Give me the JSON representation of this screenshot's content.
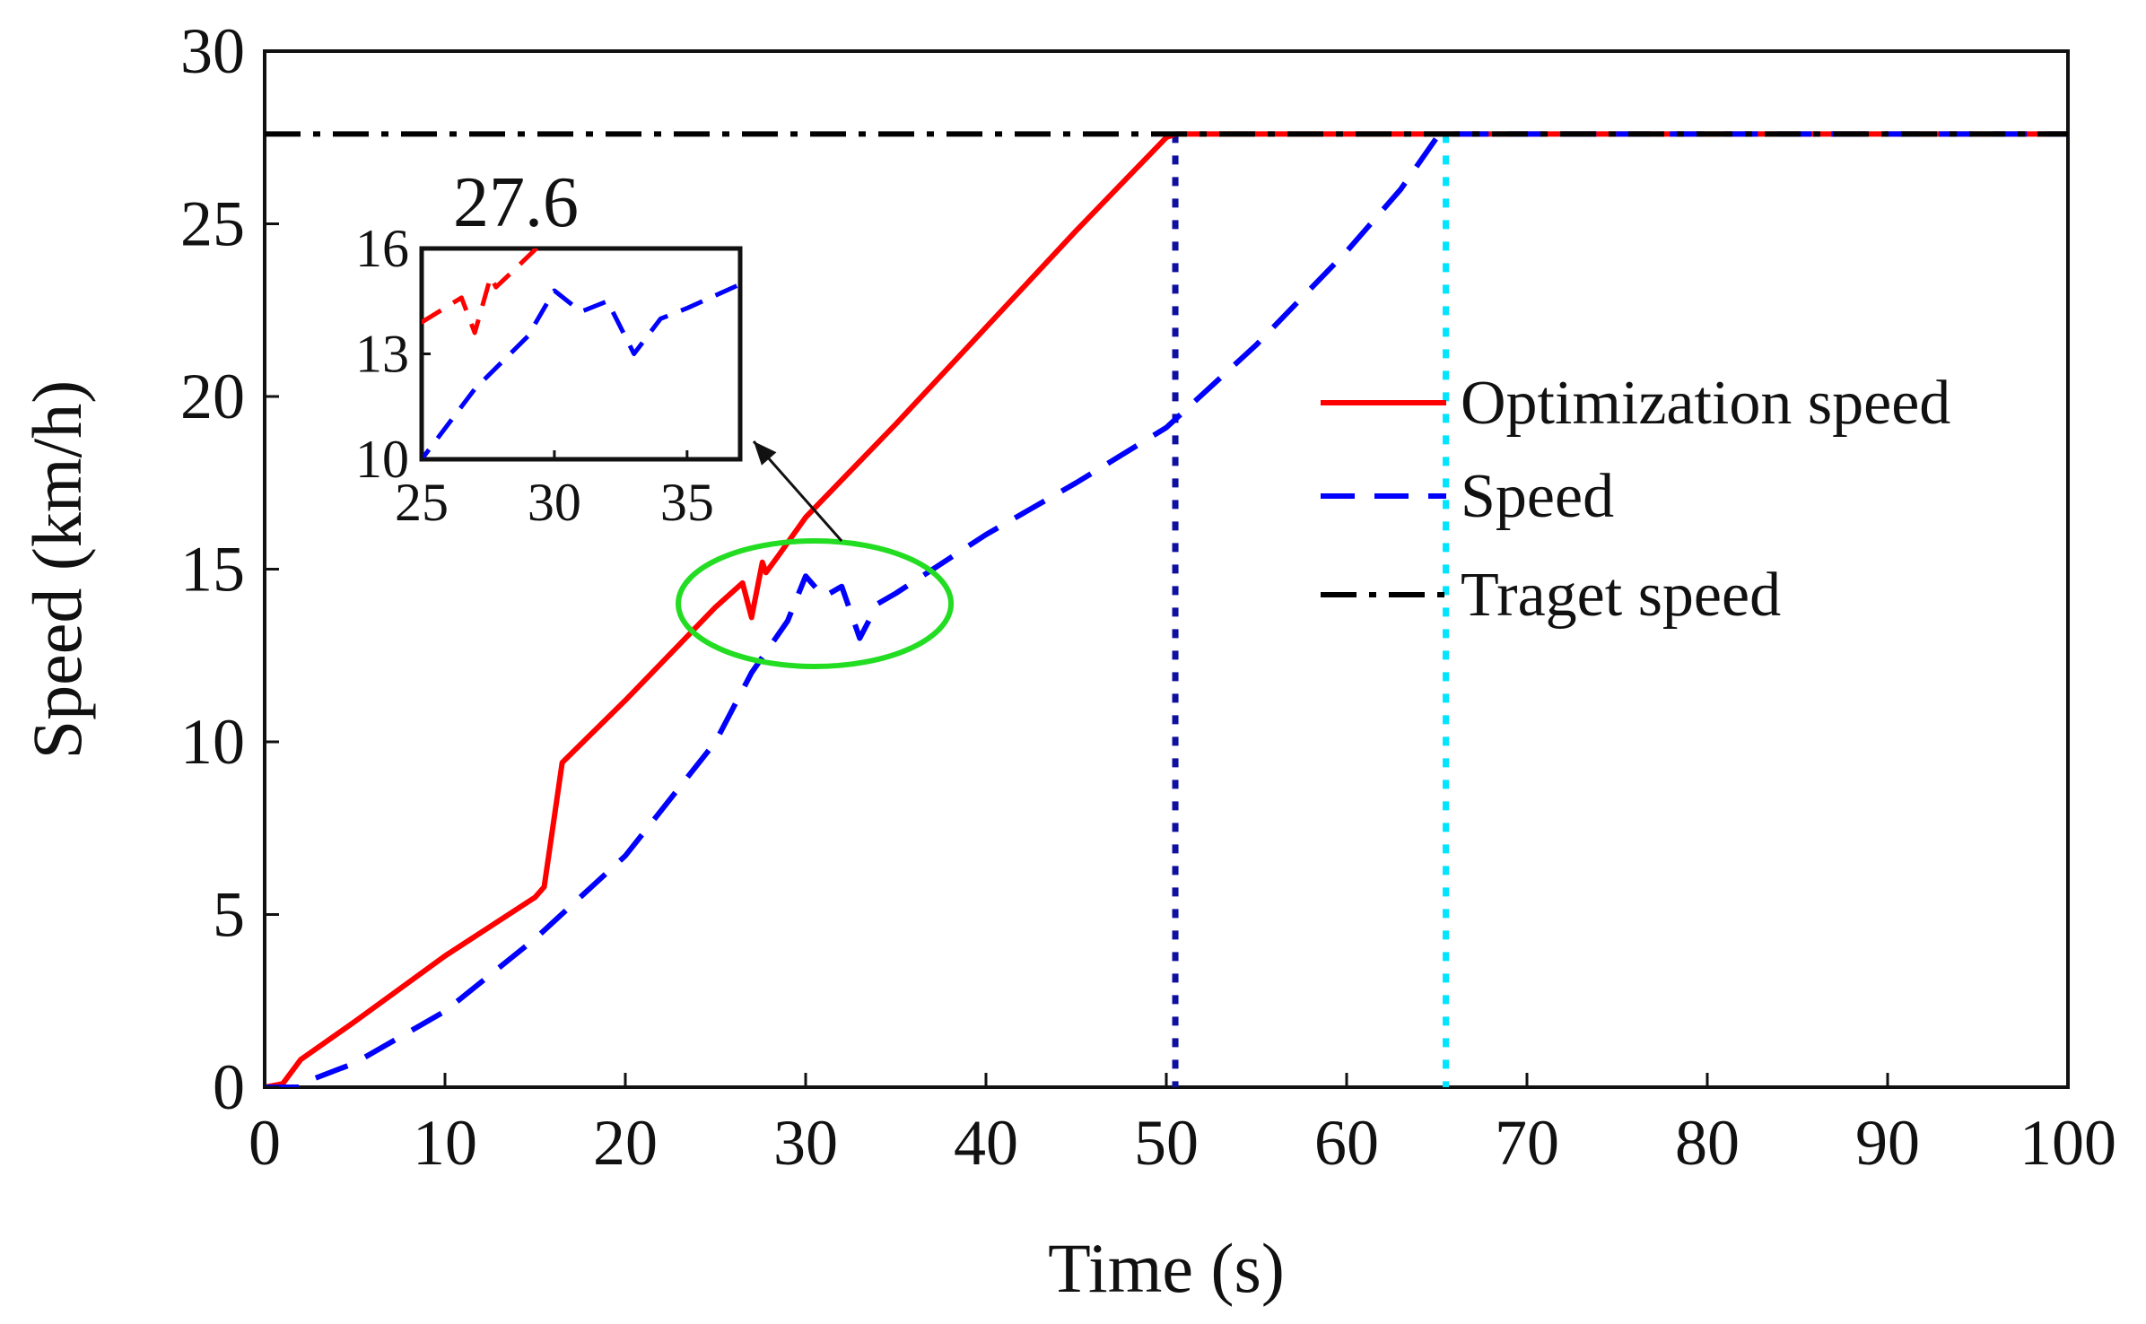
{
  "chart_data": {
    "type": "line",
    "title": "",
    "xlabel": "Time (s)",
    "ylabel": "Speed (km/h)",
    "xlim": [
      0,
      100
    ],
    "ylim": [
      0,
      30
    ],
    "x_ticks": [
      "0",
      "10",
      "20",
      "30",
      "40",
      "50",
      "60",
      "70",
      "80",
      "90",
      "100"
    ],
    "y_ticks": [
      "0",
      "5",
      "10",
      "15",
      "20",
      "25",
      "30"
    ],
    "grid": false,
    "legend_position": "right",
    "series": [
      {
        "name": "Optimization speed",
        "color": "#ff0000",
        "style": "solid",
        "x": [
          0,
          1,
          2,
          5,
          10,
          15,
          15.5,
          16.5,
          20,
          25,
          26.5,
          27.0,
          27.6,
          27.8,
          28.5,
          30,
          35,
          40,
          45,
          50,
          50.5,
          55,
          60,
          70,
          80,
          90,
          100
        ],
        "y": [
          0,
          0.1,
          0.8,
          1.9,
          3.8,
          5.5,
          5.8,
          9.4,
          11.2,
          13.9,
          14.6,
          13.6,
          15.2,
          14.9,
          15.4,
          16.5,
          19.2,
          22.0,
          24.8,
          27.5,
          27.6,
          27.6,
          27.6,
          27.6,
          27.6,
          27.6,
          27.6
        ]
      },
      {
        "name": "Speed",
        "color": "#0000ff",
        "style": "dashed",
        "x": [
          0,
          2,
          2.5,
          5,
          10,
          15,
          20,
          25,
          27,
          29,
          30,
          31,
          32,
          33,
          34,
          35,
          40,
          45,
          50,
          55,
          60,
          63,
          65,
          66,
          70,
          80,
          90,
          100
        ],
        "y": [
          0,
          0,
          0.2,
          0.7,
          2.2,
          4.3,
          6.7,
          10.0,
          12.0,
          13.5,
          14.8,
          14.2,
          14.5,
          13.0,
          14.0,
          14.3,
          16.0,
          17.5,
          19.1,
          21.5,
          24.2,
          26.0,
          27.5,
          27.6,
          27.6,
          27.6,
          27.6,
          27.6
        ]
      },
      {
        "name": "Traget speed",
        "color": "#000000",
        "style": "dashdot",
        "x": [
          0,
          100
        ],
        "y": [
          27.6,
          27.6
        ]
      }
    ],
    "vertical_markers": [
      {
        "x": 50.5,
        "color": "#1010a0",
        "style": "dotted"
      },
      {
        "x": 65.5,
        "color": "#00e5ff",
        "style": "dotted"
      }
    ],
    "annotations": [
      {
        "text": "27.6"
      }
    ],
    "inset": {
      "xlim": [
        25,
        37
      ],
      "ylim": [
        10,
        16
      ],
      "x_ticks": [
        "25",
        "30",
        "35"
      ],
      "y_ticks": [
        "10",
        "13",
        "16"
      ],
      "highlight_center": {
        "x": 30.5,
        "y": 14.0
      },
      "highlight_color": "#22dd22"
    }
  }
}
